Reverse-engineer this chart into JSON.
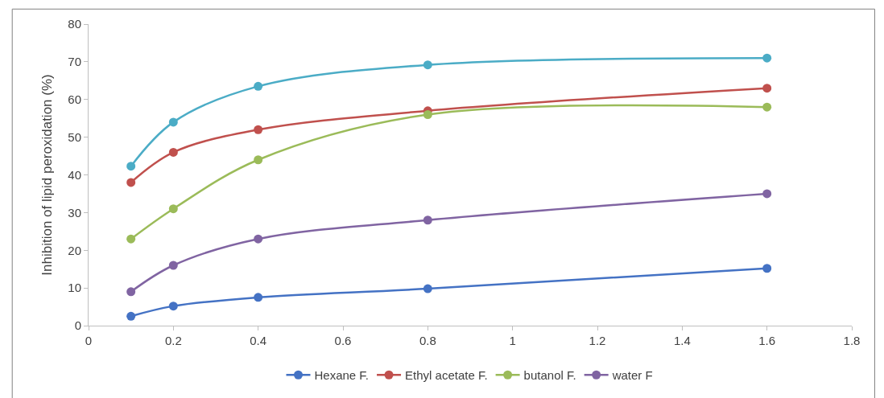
{
  "chart_data": {
    "type": "line",
    "ylabel": "Inhibition of lipid peroxidation (%)",
    "x": [
      0.1,
      0.2,
      0.4,
      0.8,
      1.6
    ],
    "xlim": [
      0,
      1.8
    ],
    "xticks": [
      0,
      0.2,
      0.4,
      0.6,
      0.8,
      1,
      1.2,
      1.4,
      1.6,
      1.8
    ],
    "ylim": [
      0,
      80
    ],
    "yticks": [
      0,
      10,
      20,
      30,
      40,
      50,
      60,
      70,
      80
    ],
    "legend": "bottom",
    "marker": "circle",
    "line_style": "solid",
    "series": [
      {
        "name": "Hexane F.",
        "color": "#4472c4",
        "values": [
          2.5,
          5.2,
          7.5,
          9.8,
          15.2
        ]
      },
      {
        "name": "Ethyl acetate F.",
        "color": "#c0504d",
        "values": [
          38,
          46,
          52,
          57,
          63
        ]
      },
      {
        "name": "butanol F.",
        "color": "#9bbb59",
        "values": [
          23,
          31,
          44,
          56,
          58
        ]
      },
      {
        "name": "water F",
        "color": "#8064a2",
        "values": [
          9,
          16,
          23,
          28,
          35
        ]
      },
      {
        "color": "#4bacc6",
        "values": [
          42.3,
          54,
          63.5,
          69.2,
          71
        ]
      }
    ]
  }
}
